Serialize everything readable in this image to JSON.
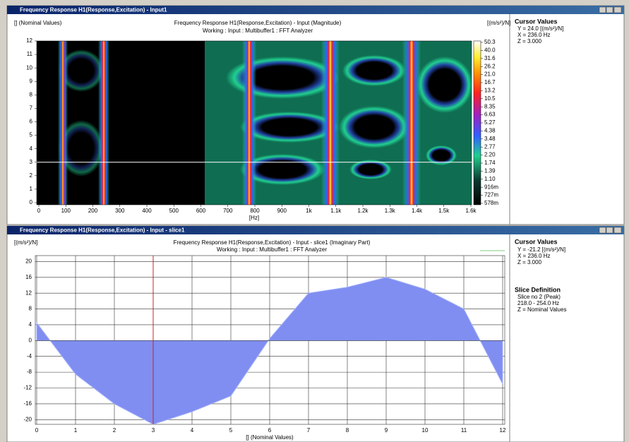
{
  "windows": [
    {
      "title": "Frequency Response H1(Response,Excitation) - Input1",
      "panel": {
        "heading": "Cursor Values",
        "lines": [
          "Y = 24.0 [(m/s²)/N]",
          "X = 236.0 Hz",
          "Z = 3.000"
        ]
      }
    },
    {
      "title": "Frequency Response H1(Response,Excitation) - Input - slice1",
      "panel": {
        "heading": "Cursor Values",
        "lines": [
          "Y = -21.2 [(m/s²)/N]",
          "X = 236.0 Hz",
          "Z = 3.000"
        ],
        "heading2": "Slice Definition",
        "lines2": [
          "Slice no 2 (Peak)",
          "218.0 - 254.0 Hz",
          "Z = Nominal Values"
        ]
      }
    }
  ],
  "chart_data": [
    {
      "type": "heatmap",
      "title": "Frequency Response H1(Response,Excitation) - Input (Magnitude)",
      "subtitle": "Working : Input : Multibuffer1 : FFT Analyzer",
      "y_label": "[] (Nominal Values)",
      "x_label": "[Hz]",
      "unit_label": "[(m/s²)/N]",
      "xlim": [
        0,
        1600
      ],
      "xticks": [
        0,
        100,
        200,
        300,
        400,
        500,
        600,
        700,
        800,
        900,
        {
          "value": 1000,
          "label": "1k"
        },
        {
          "value": 1100,
          "label": "1.1k"
        },
        {
          "value": 1200,
          "label": "1.2k"
        },
        {
          "value": 1300,
          "label": "1.3k"
        },
        {
          "value": 1400,
          "label": "1.4k"
        },
        {
          "value": 1500,
          "label": "1.5k"
        },
        {
          "value": 1600,
          "label": "1.6k"
        }
      ],
      "ylim": [
        0,
        12
      ],
      "yticks": [
        0,
        1,
        2,
        3,
        4,
        5,
        6,
        7,
        8,
        9,
        10,
        11,
        12
      ],
      "colorbar_labels": [
        "50.3",
        "40.0",
        "31.6",
        "26.2",
        "21.0",
        "16.7",
        "13.2",
        "10.5",
        "8.35",
        "6.63",
        "5.27",
        "4.38",
        "3.48",
        "2.77",
        "2.20",
        "1.74",
        "1.39",
        "1.10",
        "916m",
        "727m",
        "578m"
      ],
      "cursor_z": 3
    },
    {
      "type": "area",
      "title": "Frequency Response H1(Response,Excitation) - Input - slice1 (Imaginary Part)",
      "subtitle": "Working : Input : Multibuffer1 : FFT Analyzer",
      "y_label": "[(m/s²)/N]",
      "x_label": "[] (Nominal Values)",
      "x": [
        0,
        1,
        2,
        3,
        4,
        5,
        6,
        7,
        8,
        9,
        10,
        11,
        12
      ],
      "values": [
        4.5,
        -8.5,
        -16,
        -21.2,
        -18,
        -14,
        0.5,
        12,
        13.5,
        16,
        13,
        8,
        -11
      ],
      "color": "#7f8ef0",
      "xlim": [
        0,
        12
      ],
      "xticks": [
        0,
        1,
        2,
        3,
        4,
        5,
        6,
        7,
        8,
        9,
        10,
        11,
        12
      ],
      "ylim": [
        -21.2,
        21.5
      ],
      "yticks": [
        -20,
        -16,
        -12,
        -8,
        -4,
        0,
        4,
        8,
        12,
        16,
        20
      ],
      "grid": true,
      "cursor_x": 3
    }
  ]
}
